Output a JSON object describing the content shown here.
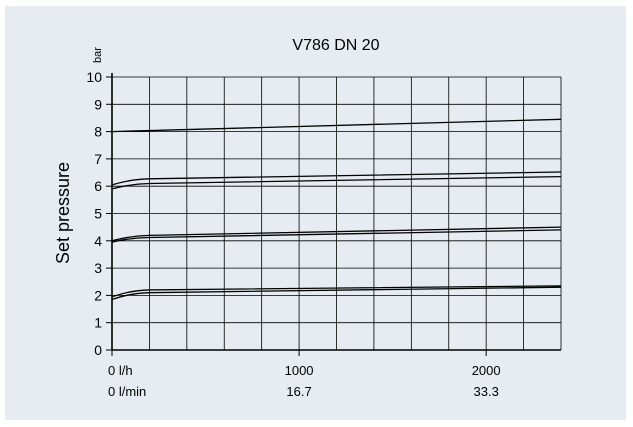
{
  "chart_data": {
    "type": "line",
    "title": "V786 DN 20",
    "ylabel": "Set pressure",
    "yunit": "bar",
    "ylim": [
      0,
      10
    ],
    "yticks": [
      "0",
      "1",
      "2",
      "3",
      "4",
      "5",
      "6",
      "7",
      "8",
      "9",
      "10"
    ],
    "xlim": [
      0,
      2400
    ],
    "xticks_primary": [
      {
        "value": 0,
        "label": "0 l/h"
      },
      {
        "value": 1000,
        "label": "1000"
      },
      {
        "value": 2000,
        "label": "2000"
      }
    ],
    "xticks_secondary": [
      {
        "value": 0,
        "label": "0 l/min"
      },
      {
        "value": 1000,
        "label": "16.7"
      },
      {
        "value": 2000,
        "label": "33.3"
      }
    ],
    "grid": true,
    "series": [
      {
        "x": [
          0,
          2400
        ],
        "y": [
          8.0,
          8.45
        ]
      },
      {
        "x": [
          0,
          100,
          200,
          2400
        ],
        "y": [
          6.05,
          6.22,
          6.27,
          6.52
        ]
      },
      {
        "x": [
          0,
          100,
          200,
          2400
        ],
        "y": [
          5.9,
          6.05,
          6.1,
          6.35
        ]
      },
      {
        "x": [
          0,
          100,
          200,
          2400
        ],
        "y": [
          4.0,
          4.15,
          4.2,
          4.5
        ]
      },
      {
        "x": [
          0,
          100,
          200,
          2400
        ],
        "y": [
          3.95,
          4.08,
          4.12,
          4.4
        ]
      },
      {
        "x": [
          0,
          100,
          200,
          2400
        ],
        "y": [
          1.95,
          2.15,
          2.2,
          2.35
        ]
      },
      {
        "x": [
          0,
          100,
          200,
          2400
        ],
        "y": [
          1.85,
          2.05,
          2.1,
          2.3
        ]
      }
    ]
  }
}
